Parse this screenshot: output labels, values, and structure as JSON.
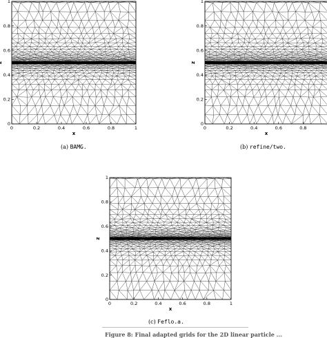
{
  "figure": {
    "caption_text": "Figure 8: Final adapted grids for the 2D linear particle ..."
  },
  "panels": [
    {
      "id": "a",
      "label_prefix": "(a)",
      "label_name": "BAMG.",
      "xlabel": "x",
      "ylabel": "z",
      "x_ticks": [
        "0",
        "0.2",
        "0.4",
        "0.6",
        "0.8",
        "1"
      ],
      "y_ticks": [
        "0",
        "0.2",
        "0.4",
        "0.6",
        "0.8",
        "1"
      ]
    },
    {
      "id": "b",
      "label_prefix": "(b)",
      "label_name": "refine/two.",
      "xlabel": "x",
      "ylabel": "z",
      "x_ticks": [
        "0",
        "0.2",
        "0.4",
        "0.6",
        "0.8"
      ],
      "y_ticks": [
        "0",
        "0.2",
        "0.4",
        "0.6",
        "0.8",
        "1"
      ]
    },
    {
      "id": "c",
      "label_prefix": "(c)",
      "label_name": "Feflo.a.",
      "xlabel": "x",
      "ylabel": "z",
      "x_ticks": [
        "0",
        "0.2",
        "0.4",
        "0.6",
        "0.8",
        "1"
      ],
      "y_ticks": [
        "0",
        "0.2",
        "0.4",
        "0.6",
        "0.8",
        "1"
      ]
    }
  ],
  "mesh": {
    "refinement_band_z": 0.5,
    "x_range": [
      0,
      1
    ],
    "z_range": [
      0,
      1
    ]
  }
}
